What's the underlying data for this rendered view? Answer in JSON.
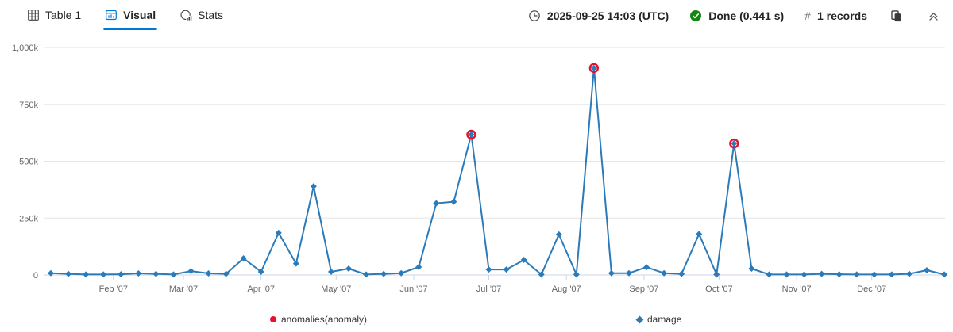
{
  "toolbar": {
    "tabs": [
      {
        "label": "Table 1",
        "active": false
      },
      {
        "label": "Visual",
        "active": true
      },
      {
        "label": "Stats",
        "active": false
      }
    ],
    "timestamp": "2025-09-25 14:03 (UTC)",
    "status": "Done (0.441 s)",
    "hash_symbol": "#",
    "records_label": "1 records"
  },
  "colors": {
    "accent": "#0078d4",
    "series_blue": "#2b7bba",
    "anomaly_red": "#e8112d",
    "success_green": "#128712",
    "grid": "#e6e6e6",
    "axis": "#ccd6eb",
    "axis_text": "#666666"
  },
  "chart_data": {
    "type": "line",
    "subtype": "anomalychart",
    "title": "",
    "x_axis": {
      "type": "datetime-weekly",
      "tick_labels": [
        "Feb '07",
        "Mar '07",
        "Apr '07",
        "May '07",
        "Jun '07",
        "Jul '07",
        "Aug '07",
        "Sep '07",
        "Oct '07",
        "Nov '07",
        "Dec '07"
      ],
      "tick_day_of_year": [
        31,
        59,
        90,
        120,
        151,
        181,
        212,
        243,
        273,
        304,
        334
      ],
      "first_point_day_of_year": 6,
      "step_days": 7
    },
    "y_axis": {
      "range": [
        0,
        1000000
      ],
      "grid": true,
      "ticks": [
        {
          "label": "0",
          "value": 0
        },
        {
          "label": "250k",
          "value": 250000
        },
        {
          "label": "500k",
          "value": 500000
        },
        {
          "label": "750k",
          "value": 750000
        },
        {
          "label": "1,000k",
          "value": 1000000
        }
      ]
    },
    "series": [
      {
        "name": "damage",
        "color": "#2b7bba",
        "marker": "diamond",
        "values": [
          8000,
          5000,
          2000,
          2000,
          3000,
          7000,
          5000,
          2000,
          17000,
          7000,
          5000,
          73000,
          14000,
          185000,
          50000,
          390000,
          14000,
          28000,
          2000,
          5000,
          8000,
          35000,
          315000,
          322000,
          617000,
          24000,
          24000,
          66000,
          2000,
          178000,
          2000,
          910000,
          8000,
          8000,
          34000,
          8000,
          5000,
          180000,
          2000,
          578000,
          28000,
          2000,
          2000,
          2000,
          5000,
          3000,
          2000,
          2000,
          2000,
          5000,
          21000,
          2000
        ]
      }
    ],
    "anomaly_series": {
      "name": "anomalies(anomaly)",
      "color": "#e8112d",
      "marker": "circle",
      "point_indices": [
        24,
        31,
        39
      ]
    },
    "legend": {
      "position": "bottom",
      "items": [
        {
          "label": "anomalies(anomaly)",
          "marker": "circle",
          "color": "#e8112d"
        },
        {
          "label": "damage",
          "marker": "diamond",
          "color": "#2b7bba"
        }
      ]
    }
  }
}
